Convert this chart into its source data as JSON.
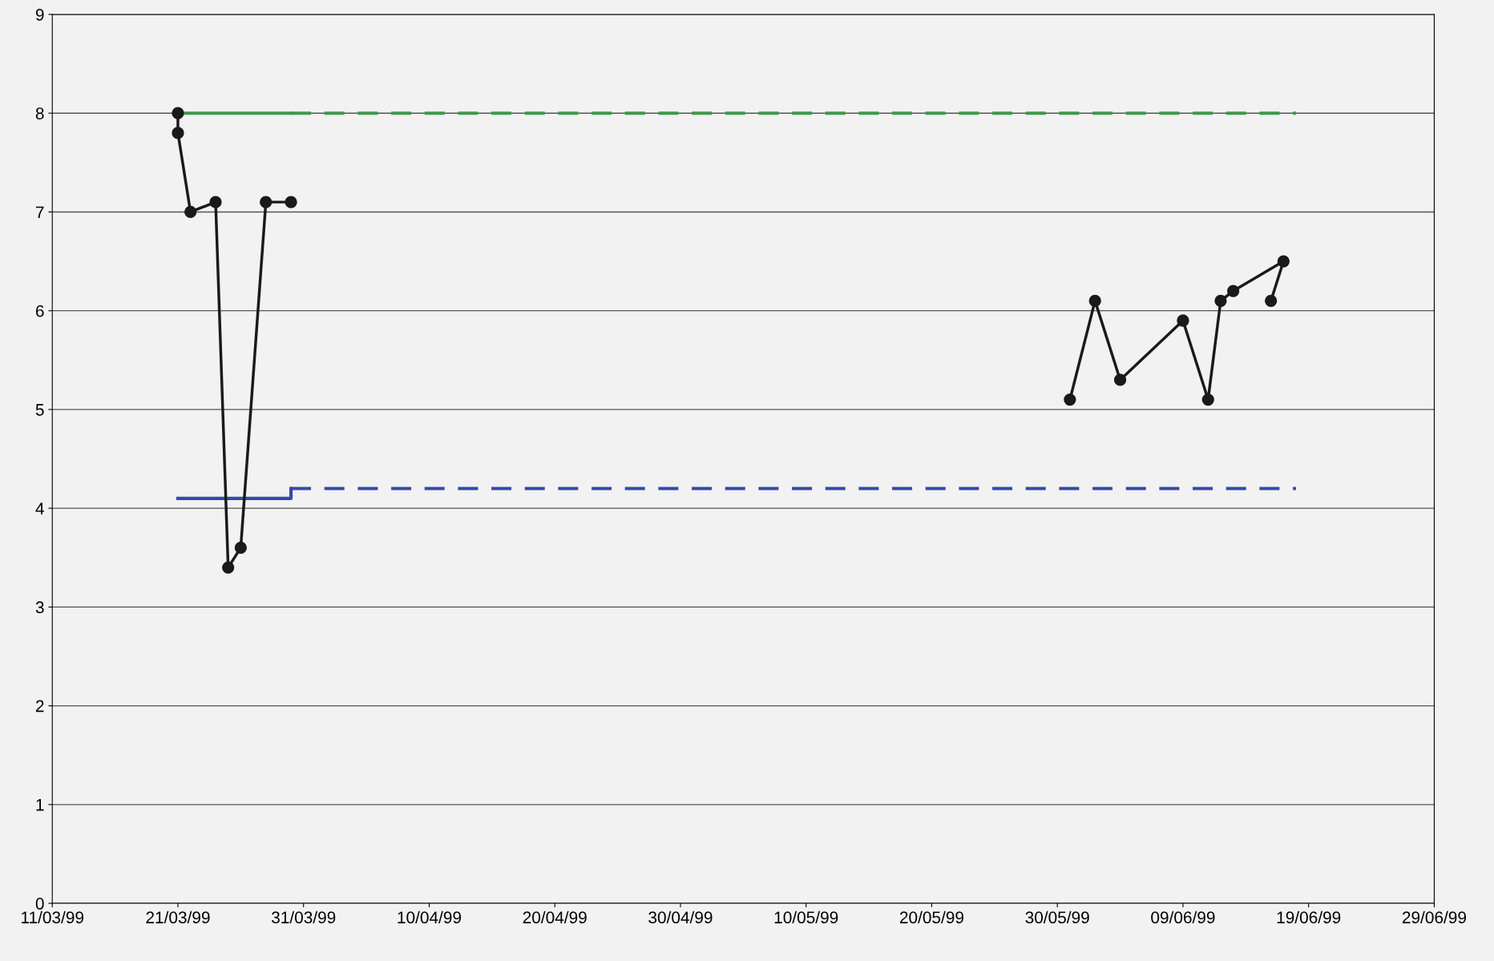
{
  "chart_data": {
    "type": "line",
    "grid": "y",
    "marker": "none",
    "legend": false,
    "xlim": [
      "1999-03-11",
      "1999-06-29"
    ],
    "xticks": [
      {
        "value": "1999-03-11",
        "label": "11/03/99"
      },
      {
        "value": "1999-03-21",
        "label": "21/03/99"
      },
      {
        "value": "1999-03-31",
        "label": "31/03/99"
      },
      {
        "value": "1999-04-10",
        "label": "10/04/99"
      },
      {
        "value": "1999-04-20",
        "label": "20/04/99"
      },
      {
        "value": "1999-04-30",
        "label": "30/04/99"
      },
      {
        "value": "1999-05-10",
        "label": "10/05/99"
      },
      {
        "value": "1999-05-20",
        "label": "20/05/99"
      },
      {
        "value": "1999-05-30",
        "label": "30/05/99"
      },
      {
        "value": "1999-06-09",
        "label": "09/06/99"
      },
      {
        "value": "1999-06-19",
        "label": "19/06/99"
      },
      {
        "value": "1999-06-29",
        "label": "29/06/99"
      }
    ],
    "ylim": [
      0,
      9
    ],
    "yticks": [
      0,
      1,
      2,
      3,
      4,
      5,
      6,
      7,
      8,
      9
    ],
    "series": [
      {
        "color": "#3a9a4a",
        "line_style": "solid",
        "x": [
          "1999-03-21",
          "1999-03-30"
        ],
        "values": [
          8,
          8
        ]
      },
      {
        "color": "#3a9a4a",
        "line_style": "dashed",
        "x": [
          "1999-03-30",
          "1999-06-18"
        ],
        "values": [
          8,
          8
        ]
      },
      {
        "color": "#3848a8",
        "line_style": "solid",
        "x": [
          "1999-03-21",
          "1999-03-30",
          "1999-03-30"
        ],
        "values": [
          4.1,
          4.1,
          4.2
        ]
      },
      {
        "color": "#3848a8",
        "line_style": "dashed",
        "x": [
          "1999-03-30",
          "1999-06-18"
        ],
        "values": [
          4.2,
          4.2
        ]
      },
      {
        "color": "#1a1a1a",
        "line_style": "solid",
        "marker": "circle",
        "x": [
          "1999-03-21",
          "1999-03-21",
          "1999-03-22",
          "1999-03-24",
          "1999-03-25",
          "1999-03-26",
          "1999-03-28",
          "1999-03-30"
        ],
        "values": [
          8.0,
          7.8,
          7.0,
          7.1,
          3.4,
          3.6,
          7.1,
          7.1
        ]
      },
      {
        "color": "#1a1a1a",
        "line_style": "solid",
        "marker": "circle",
        "x": [
          "1999-05-31",
          "1999-06-02",
          "1999-06-04",
          "1999-06-09",
          "1999-06-11",
          "1999-06-12",
          "1999-06-13",
          "1999-06-17",
          "1999-06-16"
        ],
        "values": [
          5.1,
          6.1,
          5.3,
          5.9,
          5.1,
          6.1,
          6.2,
          6.5,
          6.1
        ]
      }
    ]
  }
}
